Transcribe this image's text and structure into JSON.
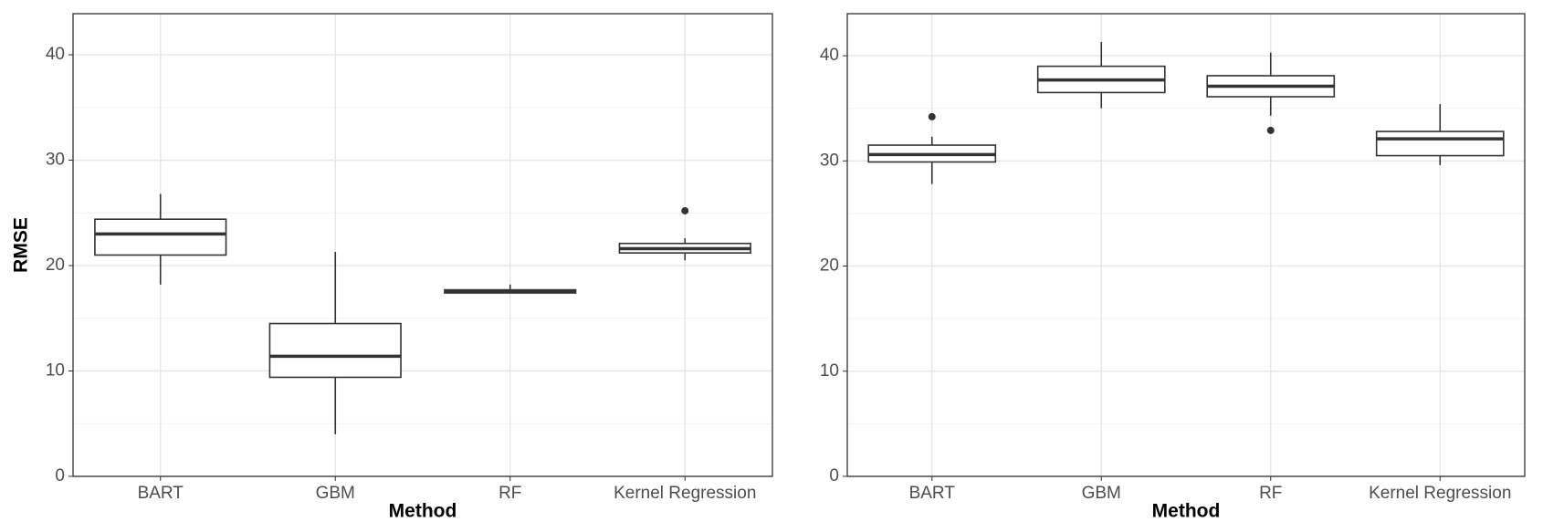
{
  "chart_data": [
    {
      "type": "box",
      "ylabel": "RMSE",
      "xlabel": "Method",
      "categories": [
        "BART",
        "GBM",
        "RF",
        "Kernel Regression"
      ],
      "boxes": [
        {
          "low": 18.2,
          "q1": 21,
          "median": 23,
          "q3": 24.4,
          "high": 26.8,
          "outliers": []
        },
        {
          "low": 4,
          "q1": 9.4,
          "median": 11.4,
          "q3": 14.5,
          "high": 21.3,
          "outliers": []
        },
        {
          "low": 17.4,
          "q1": 17.4,
          "median": 17.6,
          "q3": 17.7,
          "high": 18.2,
          "outliers": []
        },
        {
          "low": 20.5,
          "q1": 21.2,
          "median": 21.6,
          "q3": 22.1,
          "high": 22.6,
          "outliers": [
            25.2
          ]
        }
      ],
      "ylim": [
        0,
        43.9
      ],
      "yticks": [
        0,
        10,
        20,
        30,
        40
      ],
      "y_minor_ticks": [
        5,
        15,
        25,
        35
      ],
      "grid": true,
      "color": "#333333"
    },
    {
      "type": "box",
      "xlabel": "Method",
      "categories": [
        "BART",
        "GBM",
        "RF",
        "Kernel Regression"
      ],
      "boxes": [
        {
          "low": 27.8,
          "q1": 29.9,
          "median": 30.6,
          "q3": 31.5,
          "high": 32.3,
          "outliers": [
            34.2
          ]
        },
        {
          "low": 35,
          "q1": 36.5,
          "median": 37.7,
          "q3": 39,
          "high": 41.3,
          "outliers": []
        },
        {
          "low": 34.3,
          "q1": 36.1,
          "median": 37.1,
          "q3": 38.1,
          "high": 40.3,
          "outliers": [
            32.9
          ]
        },
        {
          "low": 29.6,
          "q1": 30.5,
          "median": 32.1,
          "q3": 32.8,
          "high": 35.4,
          "outliers": []
        }
      ],
      "ylim": [
        0,
        44
      ],
      "yticks": [
        0,
        10,
        20,
        30,
        40
      ],
      "y_minor_ticks": [
        5,
        15,
        25,
        35
      ],
      "grid": true,
      "color": "#333333"
    }
  ]
}
